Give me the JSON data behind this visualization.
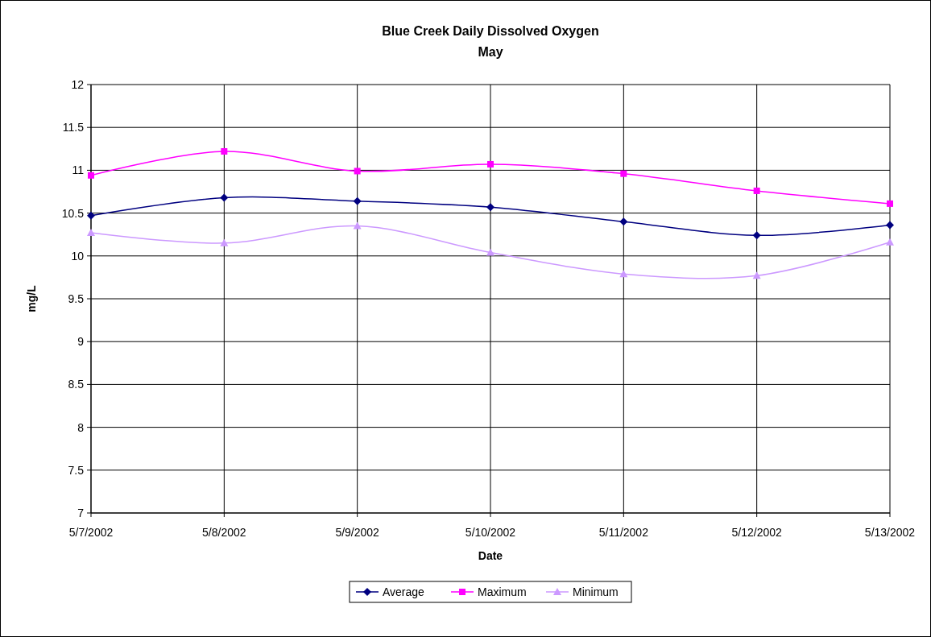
{
  "chart_data": {
    "type": "line",
    "title": "Blue Creek Daily Dissolved Oxygen",
    "subtitle": "May",
    "xlabel": "Date",
    "ylabel": "mg/L",
    "categories": [
      "5/7/2002",
      "5/8/2002",
      "5/9/2002",
      "5/10/2002",
      "5/11/2002",
      "5/12/2002",
      "5/13/2002"
    ],
    "series": [
      {
        "name": "Average",
        "color": "#000080",
        "marker": "diamond",
        "values": [
          10.47,
          10.68,
          10.64,
          10.57,
          10.4,
          10.24,
          10.36
        ]
      },
      {
        "name": "Maximum",
        "color": "#ff00ff",
        "marker": "square",
        "values": [
          10.94,
          11.22,
          10.99,
          11.07,
          10.96,
          10.76,
          10.61
        ]
      },
      {
        "name": "Minimum",
        "color": "#cc99ff",
        "marker": "triangle",
        "values": [
          10.27,
          10.15,
          10.35,
          10.04,
          9.79,
          9.77,
          10.16
        ]
      }
    ],
    "ylim": [
      7,
      12
    ],
    "yticks": [
      7,
      7.5,
      8,
      8.5,
      9,
      9.5,
      10,
      10.5,
      11,
      11.5,
      12
    ],
    "grid": true,
    "legend": "bottom"
  }
}
